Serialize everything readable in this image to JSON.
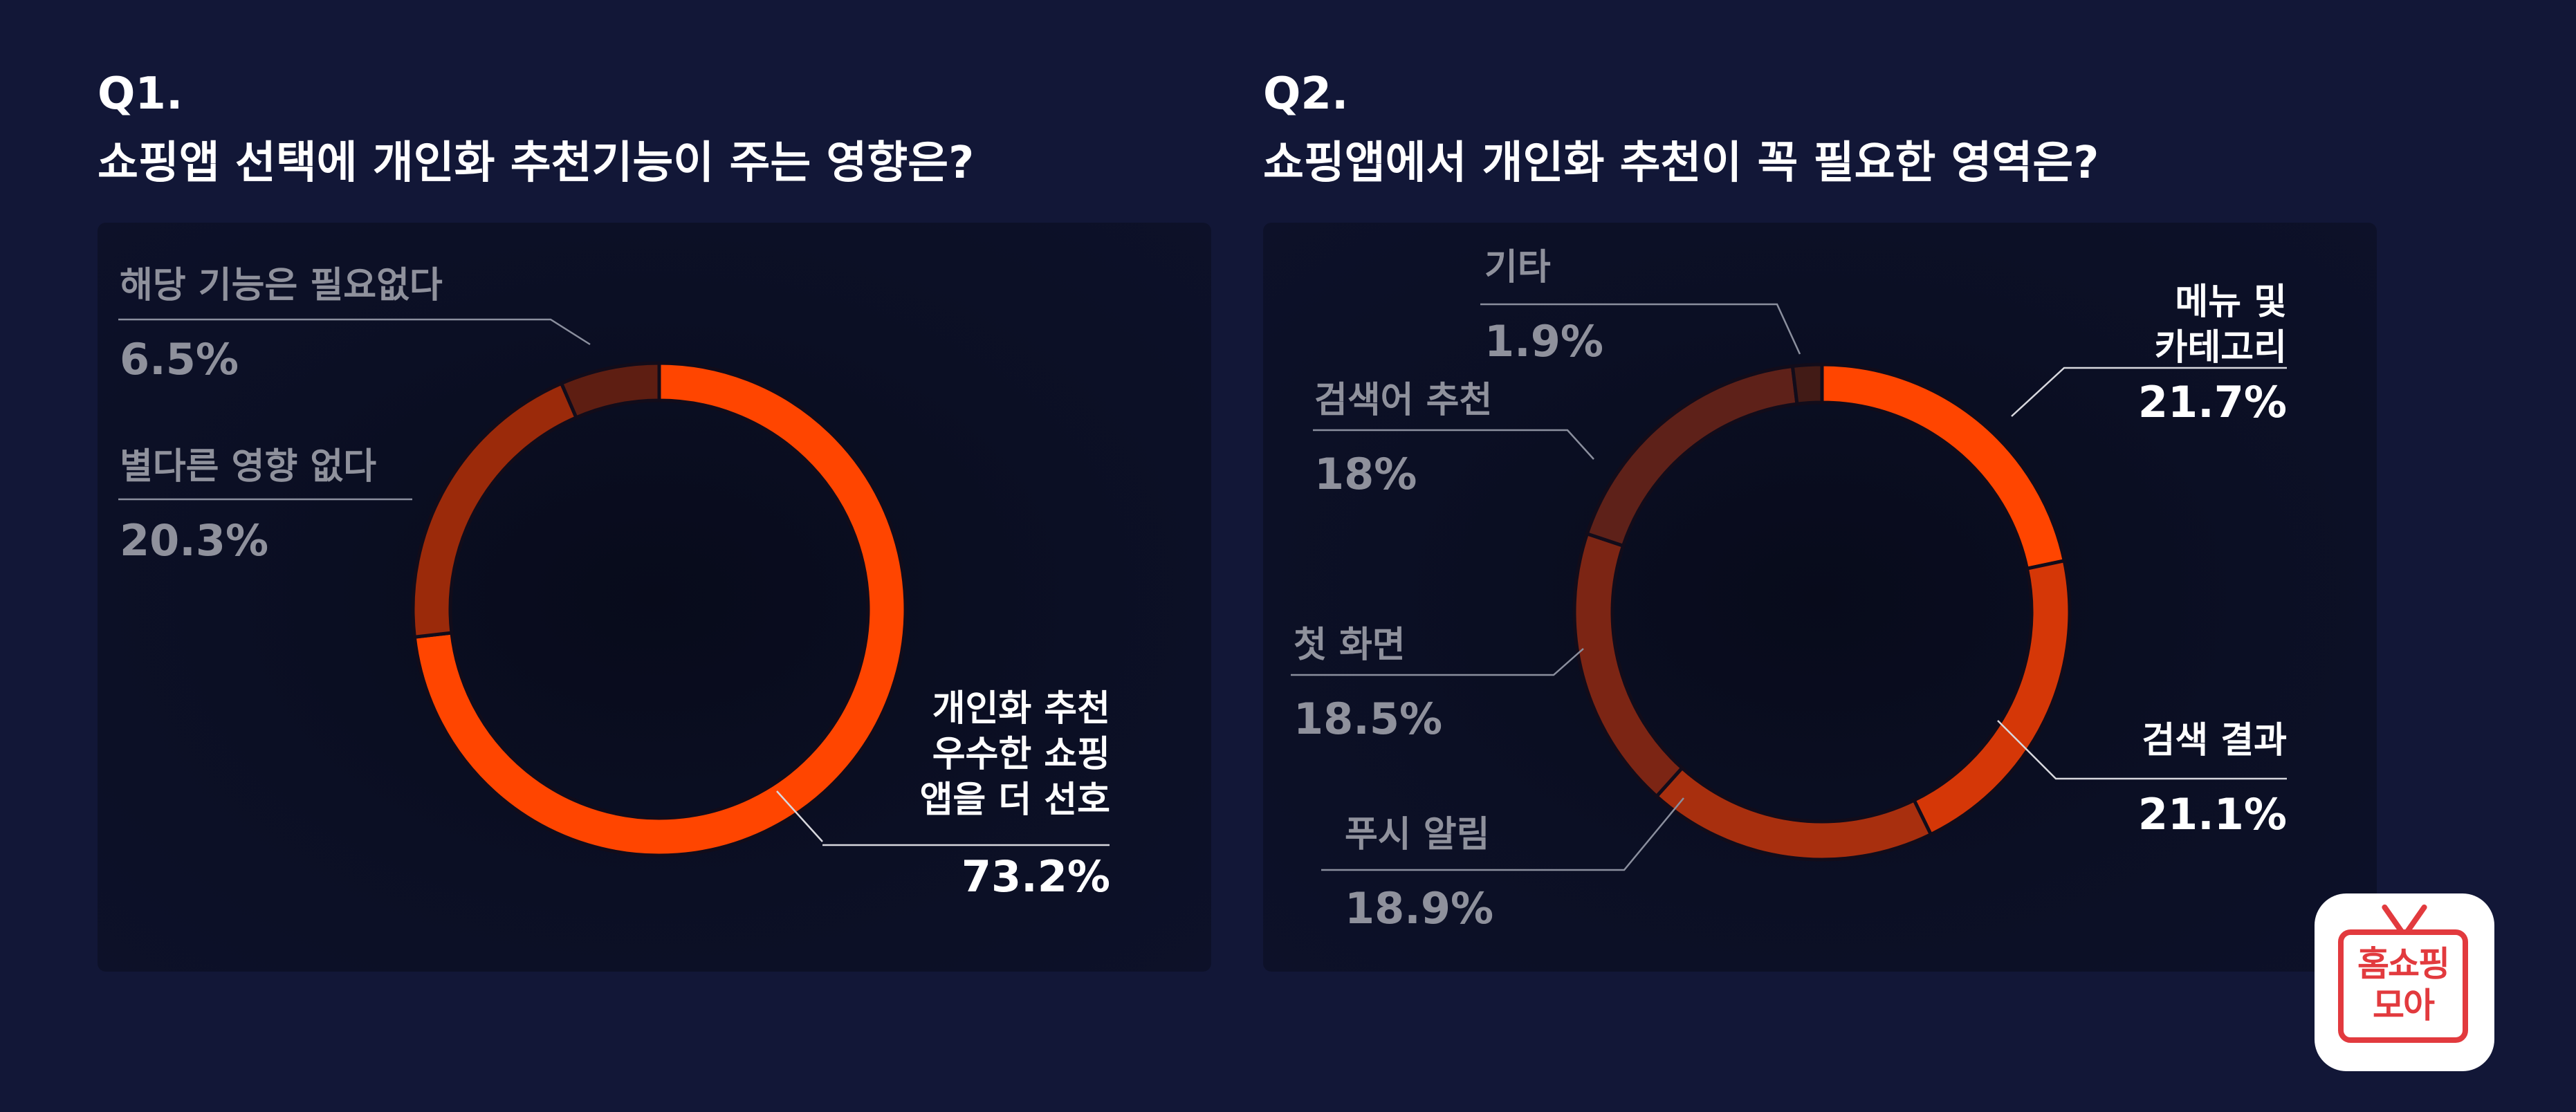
{
  "q1": {
    "number": "Q1.",
    "question": "쇼핑앱 선택에 개인화 추천기능이 주는 영향은?"
  },
  "q2": {
    "number": "Q2.",
    "question": "쇼핑앱에서 개인화 추천이 꼭 필요한 영역은?"
  },
  "chart_data": [
    {
      "type": "pie",
      "donut": true,
      "categories": [
        "개인화 추천 우수한 쇼핑 앱을 더 선호",
        "별다른 영향 없다",
        "해당 기능은 필요없다"
      ],
      "values": [
        73.2,
        20.3,
        6.5
      ],
      "value_labels": [
        "73.2%",
        "20.3%",
        "6.5%"
      ],
      "label_lines": [
        [
          "개인화 추천",
          "우수한 쇼핑",
          "앱을 더 선호"
        ],
        [
          "별다른 영향 없다"
        ],
        [
          "해당 기능은 필요없다"
        ]
      ],
      "colors": [
        "#ff4500",
        "#9b2a0a",
        "#5e1e12"
      ],
      "start_angle_deg": 0,
      "direction": "clockwise"
    },
    {
      "type": "pie",
      "donut": true,
      "categories": [
        "메뉴 및 카테고리",
        "검색 결과",
        "푸시 알림",
        "첫 화면",
        "검색어 추천",
        "기타"
      ],
      "values": [
        21.7,
        21.1,
        18.9,
        18.5,
        18,
        1.9
      ],
      "value_labels": [
        "21.7%",
        "21.1%",
        "18.9%",
        "18.5%",
        "18%",
        "1.9%"
      ],
      "label_lines": [
        [
          "메뉴 및",
          "카테고리"
        ],
        [
          "검색 결과"
        ],
        [
          "푸시 알림"
        ],
        [
          "첫 화면"
        ],
        [
          "검색어 추천"
        ],
        [
          "기타"
        ]
      ],
      "colors": [
        "#ff4500",
        "#d53707",
        "#a82f0e",
        "#7c2514",
        "#5e2119",
        "#421b16"
      ],
      "start_angle_deg": 0,
      "direction": "clockwise"
    }
  ],
  "logo": {
    "line1": "홈쇼핑",
    "line2": "모아"
  }
}
